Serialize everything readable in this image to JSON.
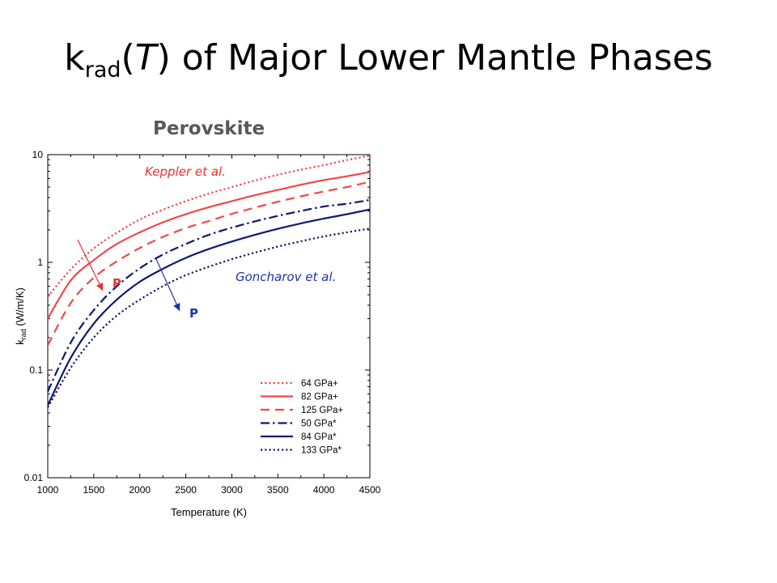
{
  "slide": {
    "title_main": "k",
    "title_sub": "rad",
    "title_paren_open": "(",
    "title_T": "T",
    "title_rest": ") of Major Lower Mantle Phases"
  },
  "chart_data": {
    "type": "line",
    "title": "Perovskite",
    "xlabel": "Temperature (K)",
    "ylabel_main": "k",
    "ylabel_sub": "rad",
    "ylabel_unit": " (W/m/K)",
    "x_scale": "linear",
    "y_scale": "log",
    "xlim": [
      1000,
      4500
    ],
    "ylim": [
      0.01,
      10
    ],
    "x_ticks": [
      1000,
      1500,
      2000,
      2500,
      3000,
      3500,
      4000,
      4500
    ],
    "y_ticks": [
      0.01,
      0.1,
      1,
      10
    ],
    "y_tick_labels": [
      "0.01",
      "0.1",
      "1",
      "10"
    ],
    "grid": false,
    "legend_position": "bottom-right",
    "x": [
      1000,
      1250,
      1500,
      1750,
      2000,
      2250,
      2500,
      2750,
      3000,
      3250,
      3500,
      3750,
      4000,
      4250,
      4500
    ],
    "series": [
      {
        "name": "64 GPa+",
        "color": "#f0484a",
        "dash": "dotted",
        "values": [
          0.48,
          0.86,
          1.35,
          1.88,
          2.5,
          3.08,
          3.7,
          4.35,
          5.0,
          5.75,
          6.5,
          7.25,
          8.0,
          8.9,
          9.8
        ]
      },
      {
        "name": "82 GPa+",
        "color": "#f0484a",
        "dash": "solid",
        "values": [
          0.3,
          0.68,
          1.05,
          1.48,
          1.9,
          2.35,
          2.8,
          3.25,
          3.7,
          4.2,
          4.7,
          5.25,
          5.8,
          6.3,
          6.9
        ]
      },
      {
        "name": "125 GPa+",
        "color": "#f0484a",
        "dash": "dashed",
        "values": [
          0.17,
          0.42,
          0.72,
          1.02,
          1.36,
          1.72,
          2.08,
          2.42,
          2.82,
          3.22,
          3.65,
          4.1,
          4.55,
          5.0,
          5.6
        ]
      },
      {
        "name": "50 GPa*",
        "color": "#0d1a6e",
        "dash": "dashdot",
        "values": [
          0.063,
          0.18,
          0.36,
          0.6,
          0.88,
          1.18,
          1.48,
          1.8,
          2.1,
          2.4,
          2.7,
          3.0,
          3.3,
          3.5,
          3.8
        ]
      },
      {
        "name": "84 GPa*",
        "color": "#0d1a6e",
        "dash": "solid",
        "values": [
          0.047,
          0.13,
          0.27,
          0.45,
          0.66,
          0.87,
          1.1,
          1.33,
          1.56,
          1.8,
          2.05,
          2.3,
          2.55,
          2.8,
          3.1
        ]
      },
      {
        "name": "133 GPa*",
        "color": "#0d1a6e",
        "dash": "dotted",
        "values": [
          0.045,
          0.105,
          0.2,
          0.32,
          0.45,
          0.6,
          0.76,
          0.91,
          1.07,
          1.23,
          1.4,
          1.57,
          1.74,
          1.9,
          2.06
        ]
      }
    ],
    "annotations": [
      {
        "text": "Keppler et al.",
        "color": "#e8312f"
      },
      {
        "text": "Goncharov et al.",
        "color": "#1d35a8"
      },
      {
        "text": "P",
        "color": "#e8312f"
      },
      {
        "text": "P",
        "color": "#1d35a8"
      }
    ]
  }
}
